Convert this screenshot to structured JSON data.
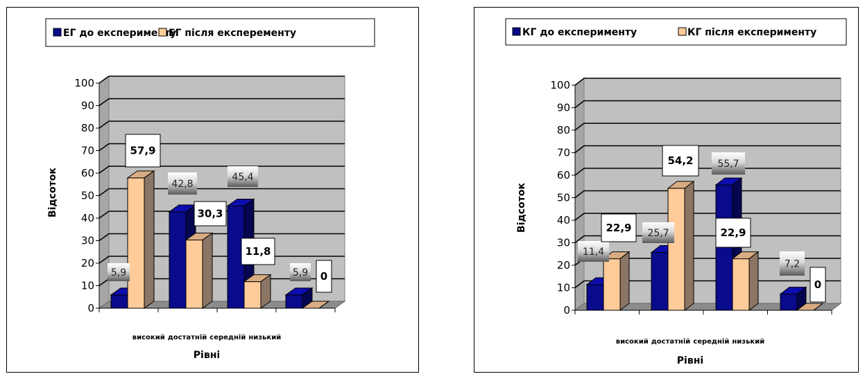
{
  "chart_data": [
    {
      "type": "bar",
      "categories": [
        "високий",
        "достатній",
        "середній",
        "низький"
      ],
      "series": [
        {
          "name": "ЕГ до експерименту",
          "values": [
            5.9,
            42.8,
            45.4,
            5.9
          ],
          "labels": [
            "5,9",
            "42,8",
            "45,4",
            "5,9"
          ],
          "color": "#0a0a8c"
        },
        {
          "name": "ЕГ після експеременту",
          "values": [
            57.9,
            30.3,
            11.8,
            0
          ],
          "labels": [
            "57,9",
            "30,3",
            "11,8",
            "0"
          ],
          "color": "#ffcc99"
        }
      ],
      "ylim": [
        0,
        100
      ],
      "yticks": [
        "0",
        "10",
        "20",
        "30",
        "40",
        "50",
        "60",
        "70",
        "80",
        "90",
        "100"
      ],
      "xlabel": "Рівні",
      "ylabel": "Відсоток",
      "legend_position": "top",
      "grid": true
    },
    {
      "type": "bar",
      "categories": [
        "високий",
        "достатній",
        "середній",
        "низький"
      ],
      "series": [
        {
          "name": "КГ до експерименту",
          "values": [
            11.4,
            25.7,
            55.7,
            7.2
          ],
          "labels": [
            "11,4",
            "25,7",
            "55,7",
            "7,2"
          ],
          "color": "#0a0a8c"
        },
        {
          "name": "КГ після експерименту",
          "values": [
            22.9,
            54.2,
            22.9,
            0
          ],
          "labels": [
            "22,9",
            "54,2",
            "22,9",
            "0"
          ],
          "color": "#ffcc99"
        }
      ],
      "ylim": [
        0,
        100
      ],
      "yticks": [
        "0",
        "10",
        "20",
        "30",
        "40",
        "50",
        "60",
        "70",
        "80",
        "90",
        "100"
      ],
      "xlabel": "Рівні",
      "ylabel": "Відсоток",
      "legend_position": "top",
      "grid": true
    }
  ]
}
